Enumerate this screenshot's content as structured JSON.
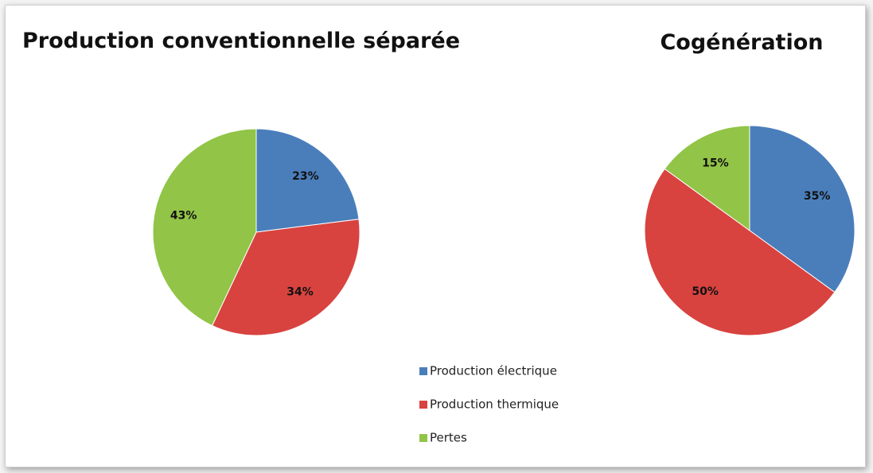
{
  "chart_data": [
    {
      "type": "pie",
      "title": "Production conventionnelle séparée",
      "categories": [
        "Production électrique",
        "Production thermique",
        "Pertes"
      ],
      "values": [
        23,
        34,
        43
      ],
      "value_labels": [
        "23%",
        "34%",
        "43%"
      ],
      "colors": [
        "#4a7ebb",
        "#d8433f",
        "#92c447"
      ]
    },
    {
      "type": "pie",
      "title": "Cogénération",
      "categories": [
        "Production électrique",
        "Production thermique",
        "Pertes"
      ],
      "values": [
        35,
        50,
        15
      ],
      "value_labels": [
        "35%",
        "50%",
        "15%"
      ],
      "colors": [
        "#4a7ebb",
        "#d8433f",
        "#92c447"
      ]
    }
  ]
}
